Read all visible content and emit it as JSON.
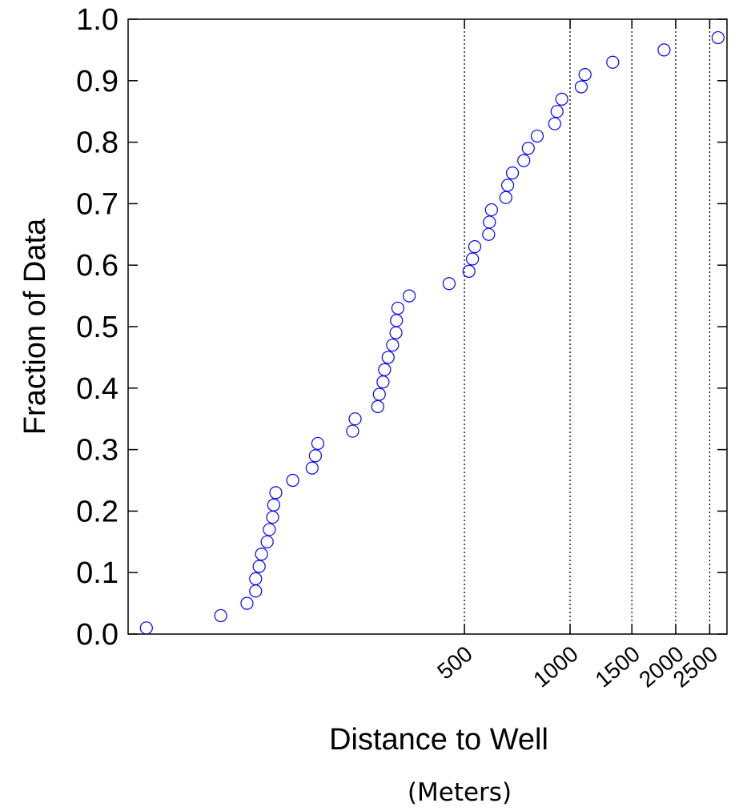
{
  "chart_data": {
    "type": "scatter",
    "title": "",
    "xlabel": "Distance to Well",
    "xlabel_sub": "(Meters)",
    "ylabel": "Fraction of Data",
    "x_scale": "log",
    "xlim": [
      55,
      2800
    ],
    "ylim": [
      0,
      1
    ],
    "x_ticks": [
      500,
      1000,
      1500,
      2000,
      2500
    ],
    "x_tick_labels": [
      "500",
      "1000",
      "1500",
      "2000",
      "2500"
    ],
    "y_ticks": [
      0.0,
      0.1,
      0.2,
      0.3,
      0.4,
      0.5,
      0.6,
      0.7,
      0.8,
      0.9,
      1.0
    ],
    "y_tick_labels": [
      "0.0",
      "0.1",
      "0.2",
      "0.3",
      "0.4",
      "0.5",
      "0.6",
      "0.7",
      "0.8",
      "0.9",
      "1.0"
    ],
    "vertical_reference_lines": [
      500,
      1000,
      1500,
      2000,
      2500
    ],
    "marker": "open-circle",
    "marker_color": "#0000ff",
    "series": [
      {
        "points": [
          [
            62,
            0.01
          ],
          [
            101,
            0.03
          ],
          [
            120,
            0.05
          ],
          [
            127,
            0.07
          ],
          [
            127,
            0.09
          ],
          [
            130,
            0.11
          ],
          [
            132,
            0.13
          ],
          [
            137,
            0.15
          ],
          [
            139,
            0.17
          ],
          [
            142,
            0.19
          ],
          [
            143,
            0.21
          ],
          [
            145,
            0.23
          ],
          [
            162,
            0.25
          ],
          [
            184,
            0.27
          ],
          [
            188,
            0.29
          ],
          [
            191,
            0.31
          ],
          [
            240,
            0.33
          ],
          [
            244,
            0.35
          ],
          [
            283,
            0.37
          ],
          [
            286,
            0.39
          ],
          [
            293,
            0.41
          ],
          [
            296,
            0.43
          ],
          [
            303,
            0.45
          ],
          [
            312,
            0.47
          ],
          [
            319,
            0.49
          ],
          [
            320,
            0.51
          ],
          [
            323,
            0.53
          ],
          [
            348,
            0.55
          ],
          [
            452,
            0.57
          ],
          [
            515,
            0.59
          ],
          [
            527,
            0.61
          ],
          [
            535,
            0.63
          ],
          [
            586,
            0.65
          ],
          [
            589,
            0.67
          ],
          [
            597,
            0.69
          ],
          [
            656,
            0.71
          ],
          [
            664,
            0.73
          ],
          [
            685,
            0.75
          ],
          [
            738,
            0.77
          ],
          [
            760,
            0.79
          ],
          [
            806,
            0.81
          ],
          [
            904,
            0.83
          ],
          [
            918,
            0.85
          ],
          [
            947,
            0.87
          ],
          [
            1076,
            0.89
          ],
          [
            1103,
            0.91
          ],
          [
            1323,
            0.93
          ],
          [
            1853,
            0.95
          ],
          [
            2640,
            0.97
          ]
        ]
      }
    ]
  }
}
